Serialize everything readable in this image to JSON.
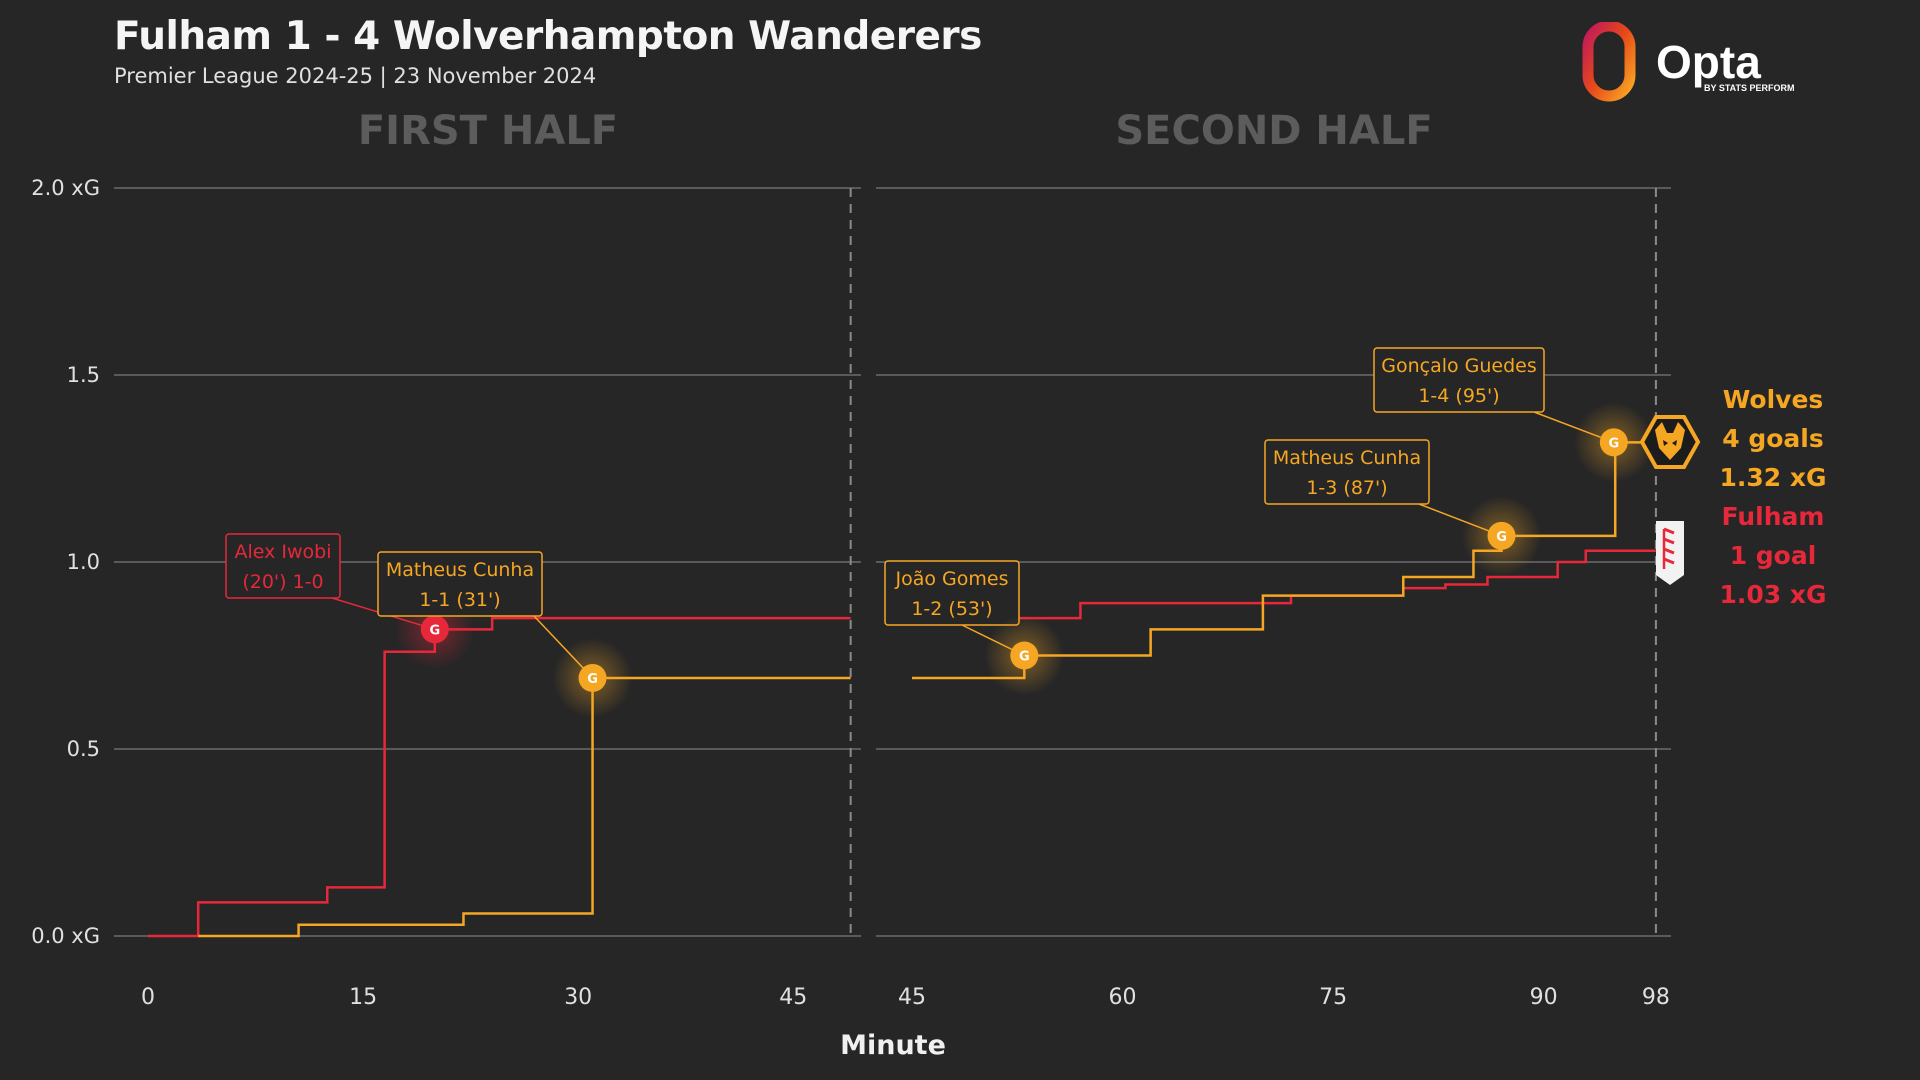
{
  "header": {
    "title": "Fulham 1 - 4 Wolverhampton Wanderers",
    "subtitle": "Premier League 2024-25 | 23 November 2024"
  },
  "brand": {
    "name": "Opta",
    "byline": "BY STATS PERFORM"
  },
  "colors": {
    "background": "#262626",
    "wolves": "#f5a623",
    "fulham": "#e6283a",
    "grid": "#5a5a5a",
    "half_title": "#5c5c5c"
  },
  "summary": {
    "wolves": {
      "team": "Wolves",
      "goals": "4 goals",
      "xg": "1.32 xG"
    },
    "fulham": {
      "team": "Fulham",
      "goals": "1 goal",
      "xg": "1.03 xG"
    }
  },
  "chart_data": {
    "type": "line",
    "step": true,
    "xlabel": "Minute",
    "ylabel": "",
    "ylim": [
      0,
      2.0
    ],
    "yticks": [
      {
        "value": 2.0,
        "label": "2.0 xG"
      },
      {
        "value": 1.5,
        "label": "1.5"
      },
      {
        "value": 1.0,
        "label": "1.0"
      },
      {
        "value": 0.5,
        "label": "0.5"
      },
      {
        "value": 0.0,
        "label": "0.0 xG"
      }
    ],
    "grid": true,
    "panels": [
      {
        "title": "FIRST HALF",
        "xlim": [
          0,
          50
        ],
        "period_end": 49,
        "xticks": [
          0,
          15,
          30,
          45
        ]
      },
      {
        "title": "SECOND HALF",
        "xlim": [
          45,
          100
        ],
        "period_end": 98,
        "xticks": [
          45,
          60,
          75,
          90,
          98
        ]
      }
    ],
    "series": [
      {
        "name": "Fulham",
        "color": "#e6283a",
        "first_half": [
          [
            0,
            0
          ],
          [
            3.5,
            0.09
          ],
          [
            12.5,
            0.13
          ],
          [
            16.5,
            0.76
          ],
          [
            20,
            0.82
          ],
          [
            24,
            0.85
          ],
          [
            49,
            0.85
          ]
        ],
        "second_half": [
          [
            45,
            0.85
          ],
          [
            49,
            0.85
          ],
          [
            57,
            0.89
          ],
          [
            72,
            0.91
          ],
          [
            80,
            0.93
          ],
          [
            83,
            0.94
          ],
          [
            86,
            0.96
          ],
          [
            91,
            1.0
          ],
          [
            93,
            1.03
          ],
          [
            98,
            1.03
          ]
        ]
      },
      {
        "name": "Wolves",
        "color": "#f5a623",
        "first_half": [
          [
            3.5,
            0
          ],
          [
            10.5,
            0.03
          ],
          [
            22,
            0.06
          ],
          [
            31,
            0.69
          ],
          [
            49,
            0.69
          ]
        ],
        "second_half": [
          [
            45,
            0.69
          ],
          [
            52.5,
            0.69
          ],
          [
            53,
            0.75
          ],
          [
            62,
            0.82
          ],
          [
            70,
            0.91
          ],
          [
            80,
            0.96
          ],
          [
            85,
            1.03
          ],
          [
            87,
            1.07
          ],
          [
            95,
            1.07
          ],
          [
            95.1,
            1.32
          ],
          [
            98,
            1.32
          ]
        ]
      }
    ],
    "goals": [
      {
        "team": "Fulham",
        "panel": 0,
        "minute": 20,
        "xg": 0.82,
        "marker": "G",
        "label": [
          "Alex Iwobi",
          "(20') 1-0"
        ]
      },
      {
        "team": "Wolves",
        "panel": 0,
        "minute": 31,
        "xg": 0.69,
        "marker": "G",
        "label": [
          "Matheus Cunha",
          "1-1 (31')"
        ]
      },
      {
        "team": "Wolves",
        "panel": 1,
        "minute": 53,
        "xg": 0.75,
        "marker": "G",
        "label": [
          "João Gomes",
          "1-2 (53')"
        ]
      },
      {
        "team": "Wolves",
        "panel": 1,
        "minute": 87,
        "xg": 1.07,
        "marker": "G",
        "label": [
          "Matheus Cunha",
          "1-3 (87')"
        ]
      },
      {
        "team": "Wolves",
        "panel": 1,
        "minute": 95,
        "xg": 1.32,
        "marker": "G",
        "label": [
          "Gonçalo Guedes",
          "1-4 (95')"
        ]
      }
    ]
  }
}
